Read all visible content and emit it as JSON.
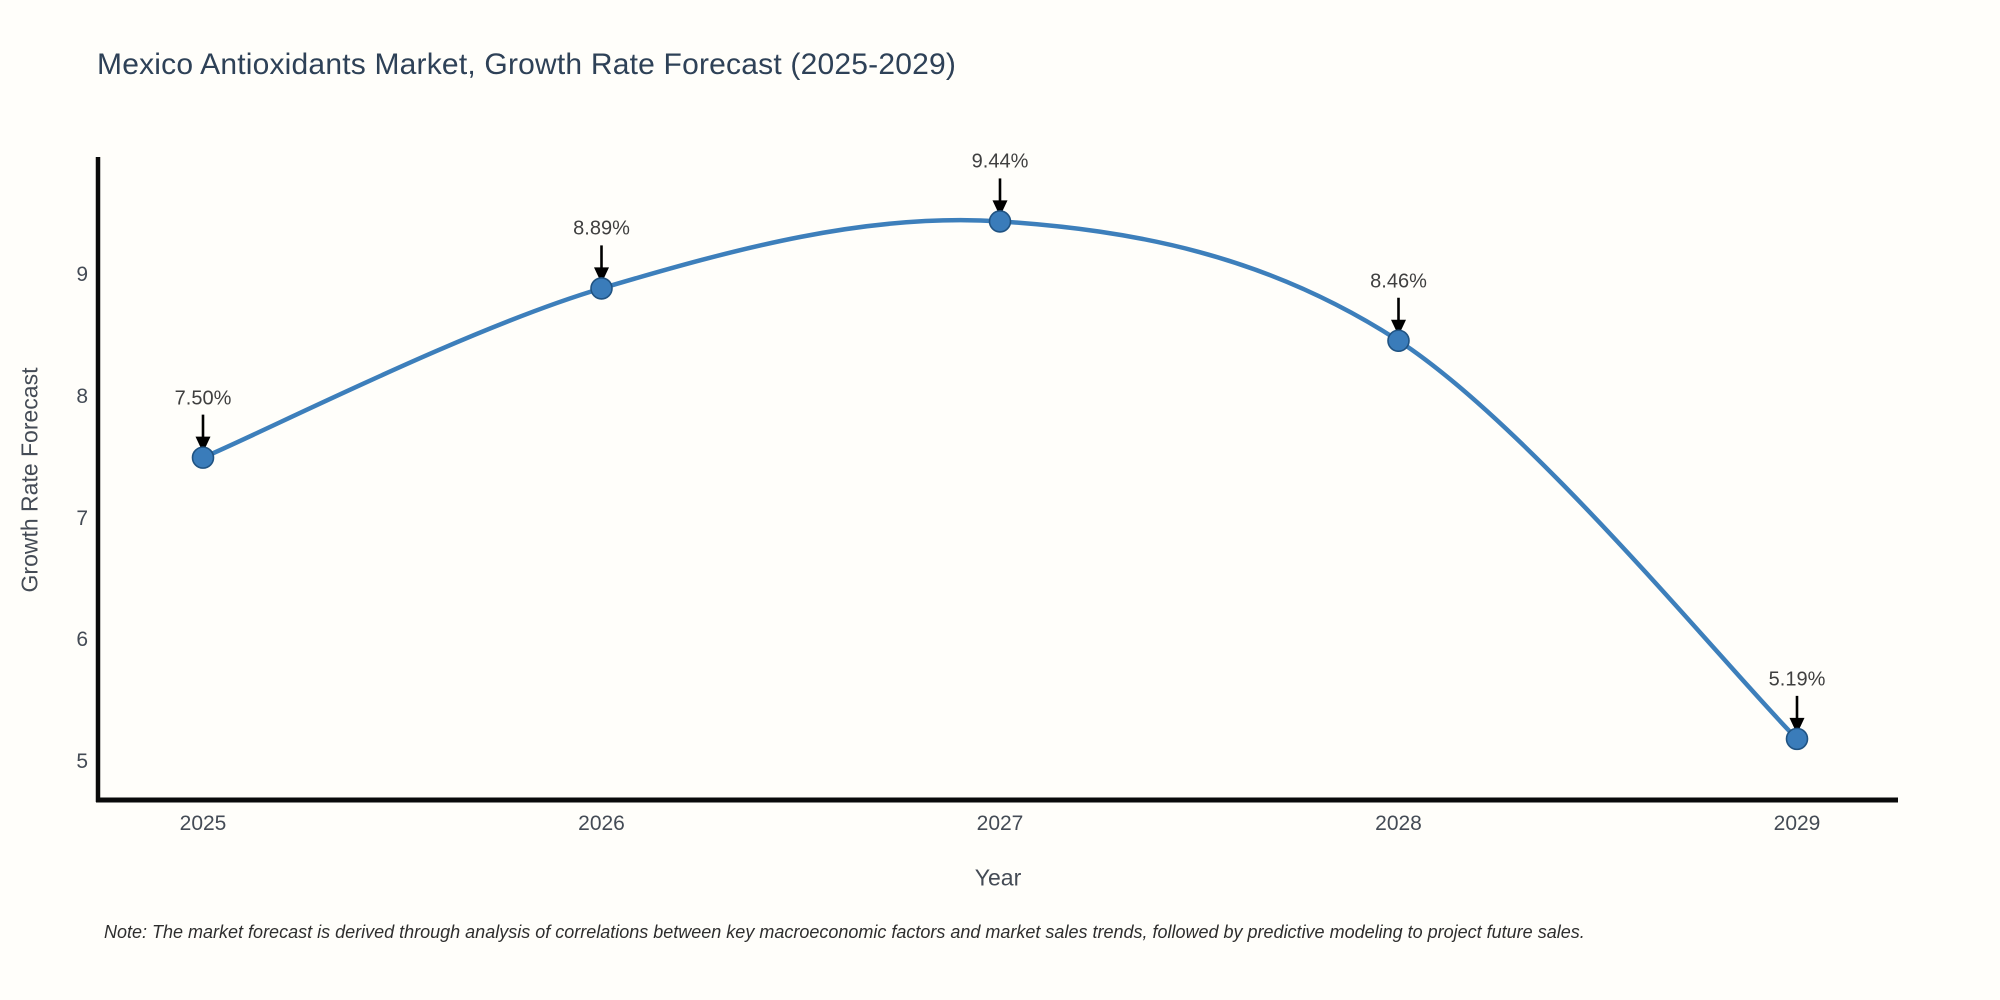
{
  "title": "Mexico Antioxidants Market, Growth Rate Forecast (2025-2029)",
  "note": "Note: The market forecast is derived through analysis of correlations between key macroeconomic factors and market sales trends, followed by predictive modeling to project future sales.",
  "chart_data": {
    "type": "line",
    "title": "Mexico Antioxidants Market, Growth Rate Forecast (2025-2029)",
    "xlabel": "Year",
    "ylabel": "Growth Rate Forecast",
    "categories": [
      "2025",
      "2026",
      "2027",
      "2028",
      "2029"
    ],
    "values": [
      7.5,
      8.89,
      9.44,
      8.46,
      5.19
    ],
    "point_labels": [
      "7.50%",
      "8.89%",
      "9.44%",
      "8.46%",
      "5.19%"
    ],
    "yticks": [
      "5",
      "6",
      "7",
      "8",
      "9"
    ],
    "ylim": [
      4.69,
      9.95
    ],
    "grid": false,
    "legend": "none",
    "smooth": true,
    "annotations_have_arrows": true
  },
  "colors": {
    "background": "#fffefa",
    "line": "#3d7fbb",
    "marker_fill": "#3a7cba",
    "marker_edge": "#205382",
    "spine": "#0a0a0a",
    "arrow": "#000000",
    "title": "#2e4157",
    "tick": "#444b55",
    "annotation": "#3f3f3f"
  }
}
